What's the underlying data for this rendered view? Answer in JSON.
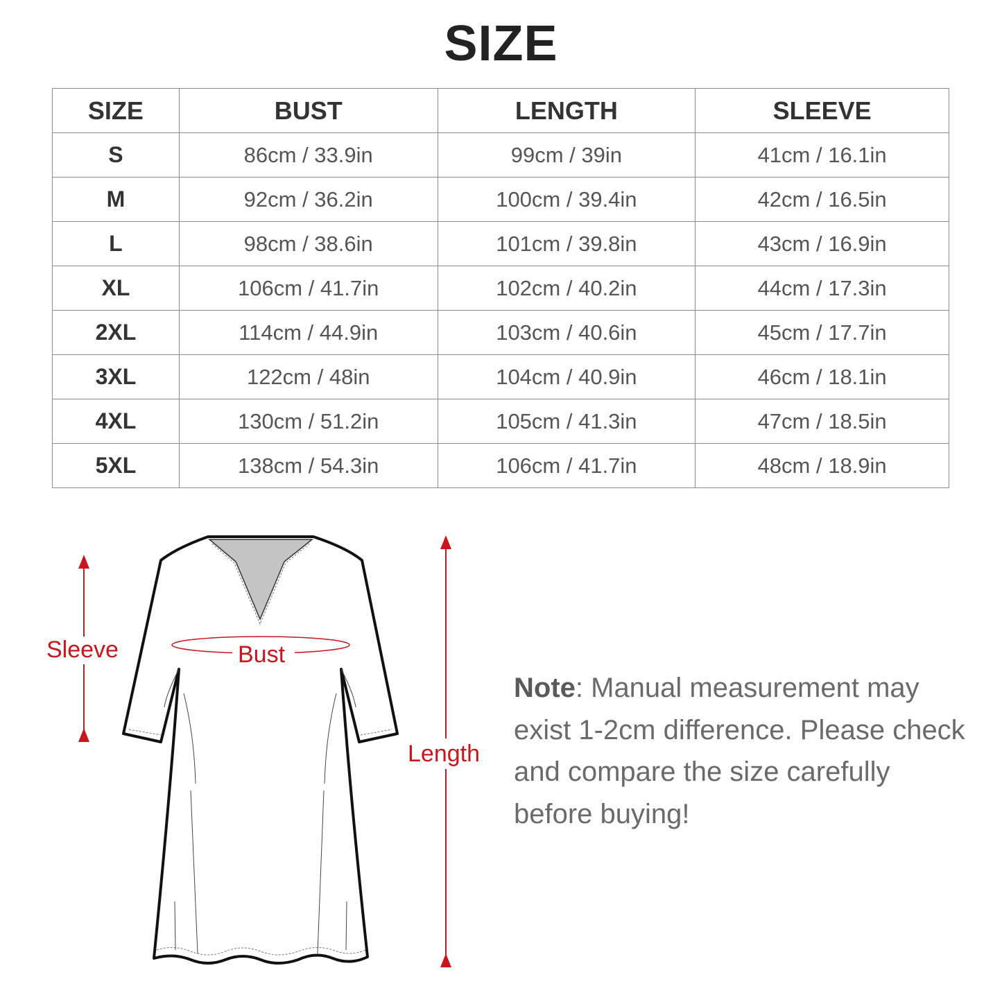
{
  "title": "SIZE",
  "table": {
    "headers": [
      "SIZE",
      "BUST",
      "LENGTH",
      "SLEEVE"
    ],
    "rows": [
      [
        "S",
        "86cm / 33.9in",
        "99cm / 39in",
        "41cm / 16.1in"
      ],
      [
        "M",
        "92cm / 36.2in",
        "100cm / 39.4in",
        "42cm / 16.5in"
      ],
      [
        "L",
        "98cm / 38.6in",
        "101cm / 39.8in",
        "43cm / 16.9in"
      ],
      [
        "XL",
        "106cm / 41.7in",
        "102cm / 40.2in",
        "44cm / 17.3in"
      ],
      [
        "2XL",
        "114cm / 44.9in",
        "103cm / 40.6in",
        "45cm / 17.7in"
      ],
      [
        "3XL",
        "122cm / 48in",
        "104cm / 40.9in",
        "46cm / 18.1in"
      ],
      [
        "4XL",
        "130cm / 51.2in",
        "105cm / 41.3in",
        "47cm / 18.5in"
      ],
      [
        "5XL",
        "138cm / 54.3in",
        "106cm / 41.7in",
        "48cm / 18.9in"
      ]
    ]
  },
  "diagram": {
    "labels": {
      "sleeve": "Sleeve",
      "bust": "Bust",
      "length": "Length"
    },
    "accent_color": "#c8161d"
  },
  "note": {
    "label": "Note",
    "text": ": Manual measurement may exist 1-2cm difference. Please check and compare the size carefully before buying!"
  }
}
